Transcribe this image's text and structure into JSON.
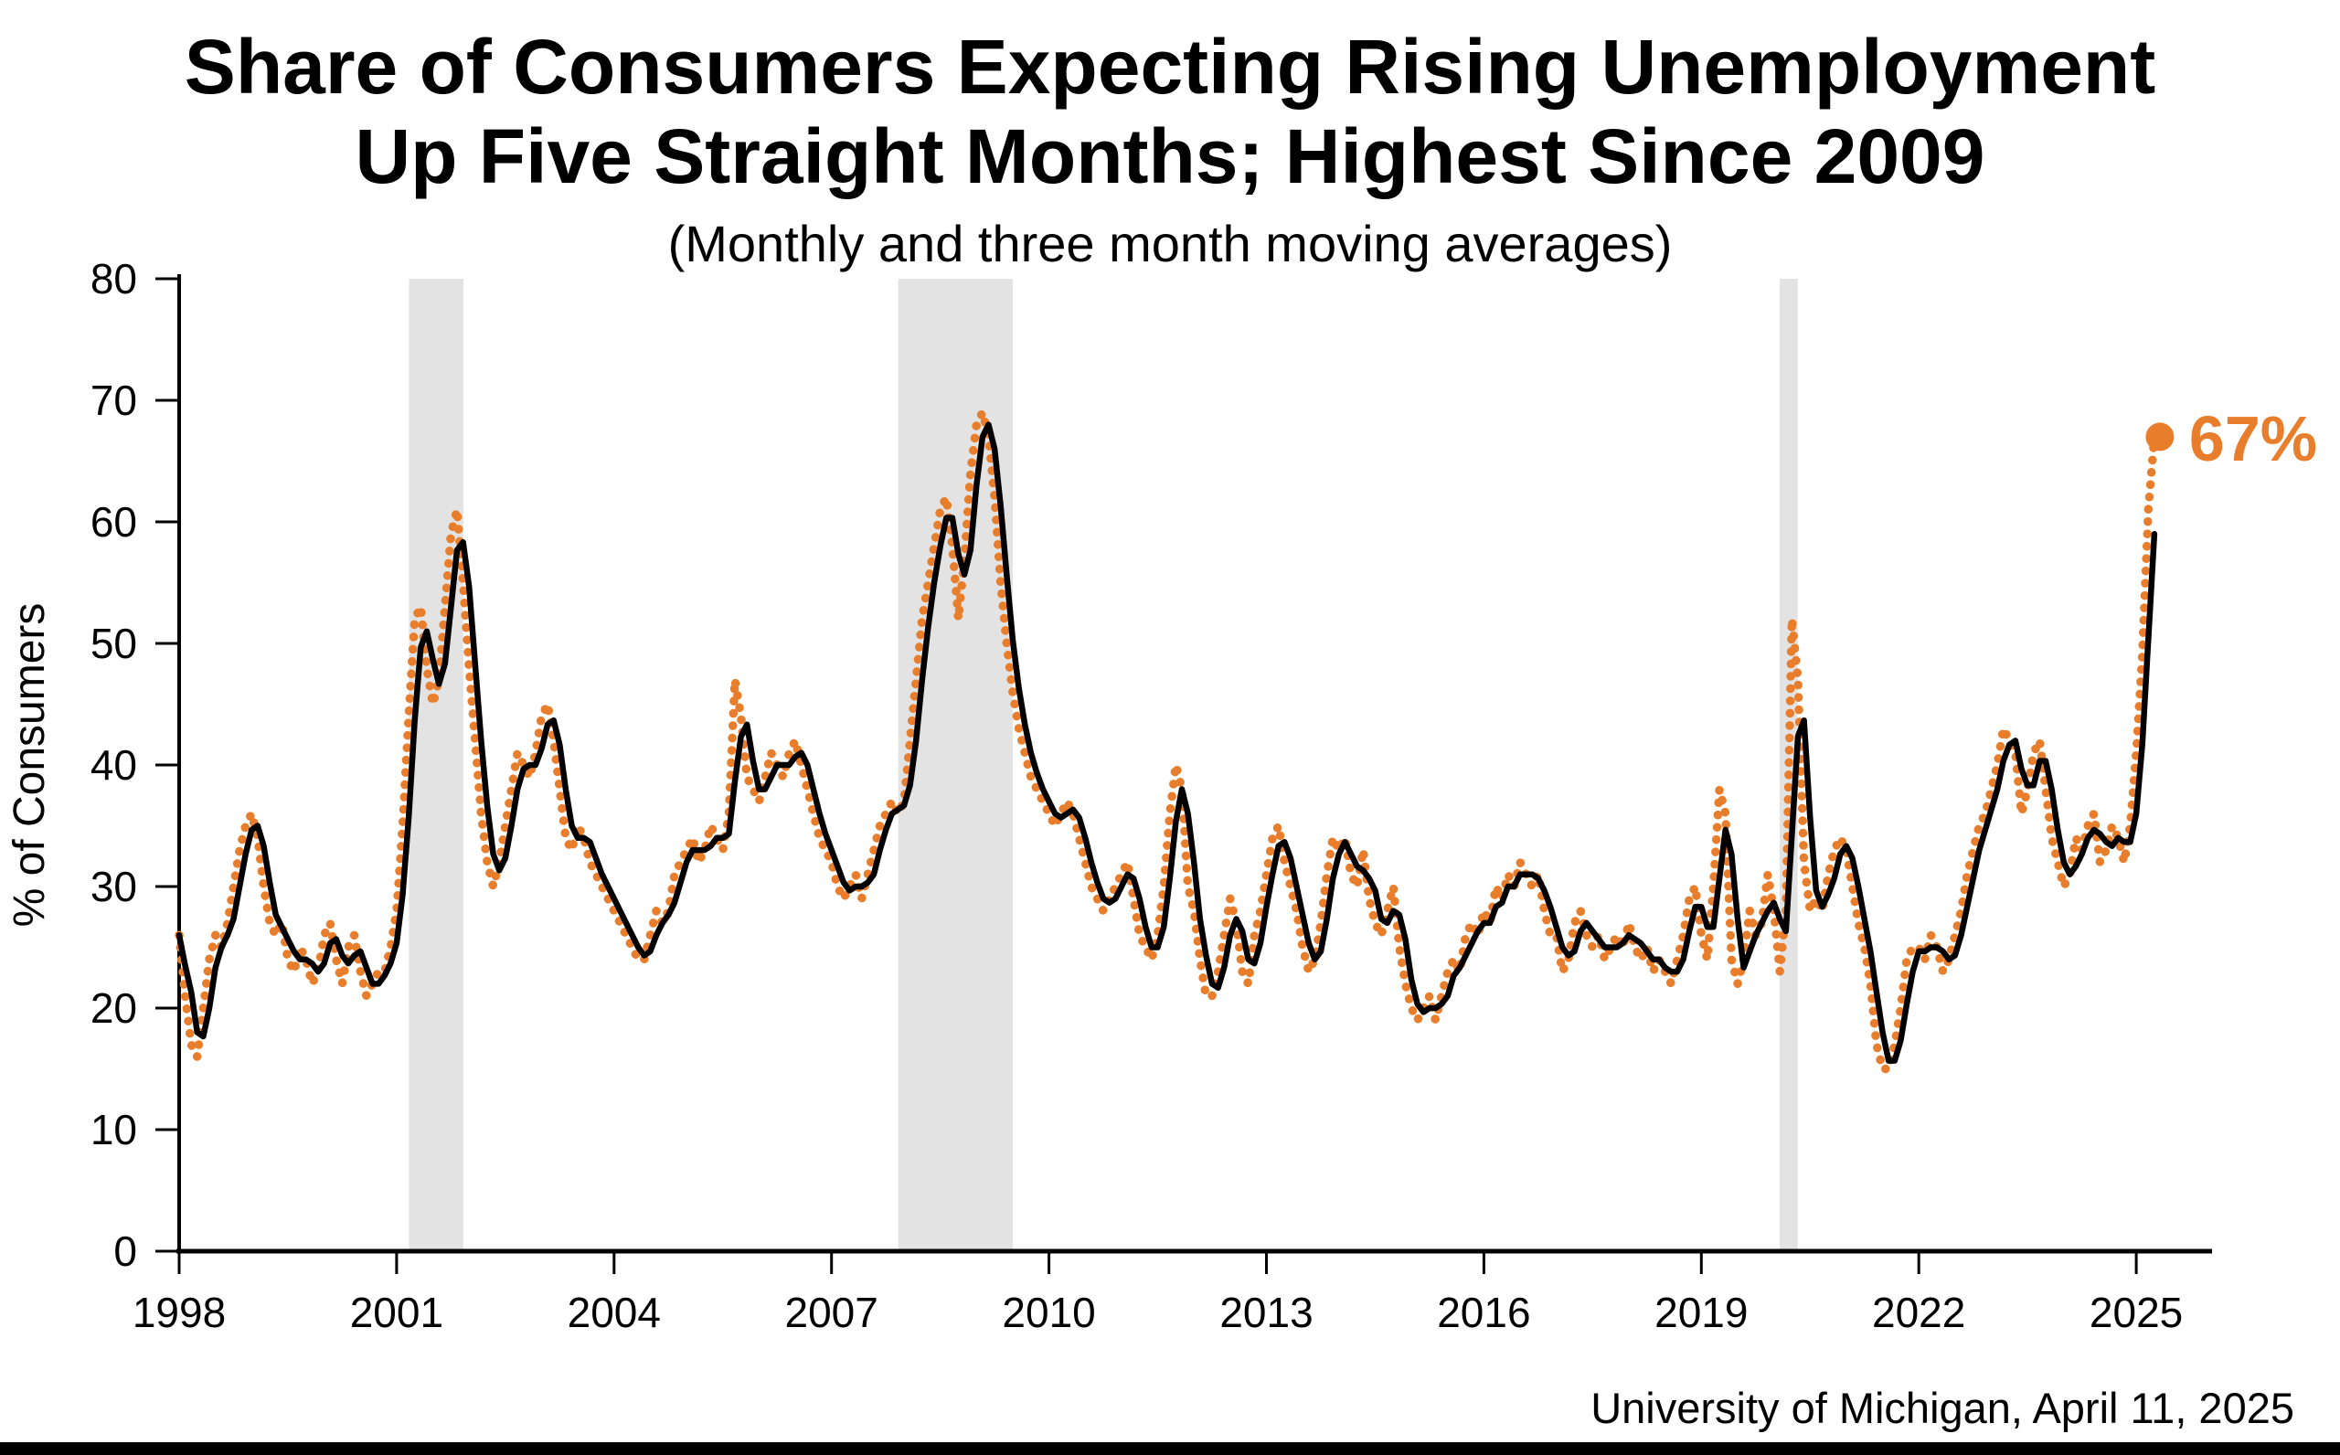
{
  "page": {
    "background_color": "#ffffff",
    "bottom_bar_color": "#000000"
  },
  "chart_data": {
    "type": "line",
    "title_line1": "Share of Consumers Expecting Rising Unemployment",
    "title_line2": "Up Five Straight Months; Highest Since 2009",
    "subtitle": "(Monthly and three month moving averages)",
    "ylabel": "% of Consumers",
    "source": "University of Michigan, April 11, 2025",
    "ylim": [
      0,
      80
    ],
    "yticks": [
      0,
      10,
      20,
      30,
      40,
      50,
      60,
      70,
      80
    ],
    "xticks": [
      1998,
      2001,
      2004,
      2007,
      2010,
      2013,
      2016,
      2019,
      2022,
      2025
    ],
    "grid": "off",
    "legend": "none",
    "recession_bands": [
      [
        2001.17,
        2001.92
      ],
      [
        2007.92,
        2009.5
      ],
      [
        2020.08,
        2020.33
      ]
    ],
    "band_color": "#E3E3E3",
    "axis_color": "#000000",
    "annotation": {
      "label": "67%",
      "year": 2025.25,
      "value": 67,
      "color": "#E87D2B"
    },
    "series": [
      {
        "name": "Monthly",
        "color": "#E87D2B",
        "style": "dotted",
        "start_year": 1998,
        "start_month": 1,
        "values": [
          26,
          21,
          17,
          16,
          20,
          24,
          26,
          25,
          27,
          30,
          33,
          35,
          36,
          34,
          30,
          27,
          26,
          27,
          24,
          23,
          25,
          24,
          22,
          23,
          26,
          27,
          24,
          22,
          25,
          26,
          23,
          21,
          22,
          23,
          23,
          25,
          28,
          35,
          44,
          52,
          53,
          48,
          45,
          47,
          53,
          59,
          61,
          55,
          48,
          42,
          36,
          32,
          30,
          32,
          35,
          38,
          41,
          40,
          39,
          41,
          44,
          45,
          42,
          38,
          34,
          33,
          35,
          34,
          32,
          31,
          30,
          29,
          28,
          27,
          26,
          25,
          24,
          24,
          26,
          28,
          27,
          28,
          31,
          32,
          33,
          34,
          32,
          33,
          35,
          34,
          33,
          36,
          47,
          44,
          39,
          38,
          37,
          39,
          41,
          40,
          39,
          41,
          42,
          40,
          38,
          36,
          34,
          33,
          32,
          30,
          29,
          30,
          31,
          29,
          31,
          33,
          35,
          36,
          37,
          36,
          37,
          42,
          47,
          52,
          55,
          58,
          61,
          62,
          58,
          52,
          57,
          64,
          68,
          69,
          67,
          62,
          55,
          50,
          46,
          43,
          41,
          39,
          38,
          37,
          36,
          35,
          36,
          37,
          36,
          34,
          32,
          30,
          29,
          28,
          29,
          30,
          31,
          32,
          29,
          26,
          25,
          24,
          26,
          30,
          36,
          40,
          38,
          30,
          28,
          24,
          21,
          21,
          23,
          26,
          29,
          27,
          23,
          22,
          26,
          28,
          31,
          34,
          35,
          32,
          30,
          28,
          25,
          23,
          24,
          27,
          31,
          34,
          33,
          34,
          31,
          30,
          33,
          29,
          27,
          26,
          28,
          30,
          25,
          22,
          20,
          19,
          20,
          21,
          19,
          21,
          23,
          24,
          23,
          26,
          27,
          26,
          28,
          27,
          30,
          29,
          31,
          30,
          32,
          31,
          30,
          31,
          28,
          26,
          26,
          23,
          24,
          27,
          28,
          26,
          25,
          26,
          24,
          25,
          26,
          25,
          27,
          25,
          24,
          25,
          23,
          24,
          23,
          22,
          24,
          26,
          29,
          30,
          26,
          24,
          30,
          38,
          36,
          24,
          22,
          24,
          28,
          26,
          27,
          31,
          28,
          23,
          28,
          52,
          47,
          32,
          28,
          29,
          28,
          31,
          33,
          34,
          33,
          30,
          27,
          25,
          22,
          17,
          15,
          15,
          17,
          20,
          24,
          25,
          25,
          24,
          26,
          25,
          23,
          24,
          26,
          28,
          31,
          33,
          35,
          36,
          38,
          40,
          43,
          42,
          41,
          36,
          38,
          41,
          42,
          38,
          34,
          32,
          30,
          31,
          34,
          33,
          35,
          36,
          32,
          33,
          35,
          34,
          32,
          35,
          41,
          49,
          61,
          67
        ]
      },
      {
        "name": "Three month moving average",
        "color": "#000000",
        "style": "solid",
        "derived_from": "Monthly",
        "window": 3
      }
    ]
  }
}
